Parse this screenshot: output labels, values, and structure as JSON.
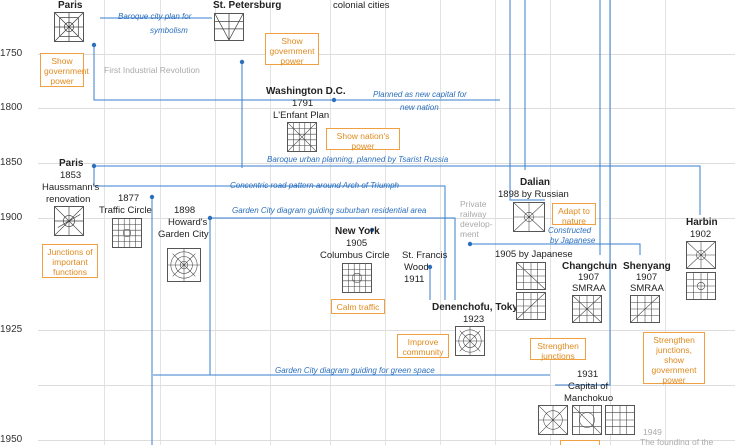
{
  "years": [
    "1750",
    "1800",
    "1850",
    "1900",
    "1925",
    "1950"
  ],
  "cities": {
    "paris1": "Paris",
    "stpetersburg": "St. Petersburg",
    "colonial": "colonial cities",
    "washington": "Washington D.C.",
    "washington_year": "1791",
    "washington_plan": "L'Enfant Plan",
    "paris2": "Paris",
    "paris2_year": "1853",
    "paris2_desc1": "Haussmann's",
    "paris2_desc2": "renovation",
    "tc_year": "1877",
    "tc_desc": "Traffic Circle",
    "hg_year": "1898",
    "hg_desc1": "Howard's",
    "hg_desc2": "Garden City",
    "ny": "New York",
    "ny_year": "1905",
    "ny_desc": "Columbus Circle",
    "sf1": "St. Francis",
    "sf2": "Wood",
    "sf3": "1911",
    "den": "Denenchofu, Tokyo",
    "den_year": "1923",
    "dalian": "Dalian",
    "dalian_desc": "1898 by Russian",
    "dalian_desc2": "1905 by Japanese",
    "changchun": "Changchun",
    "changchun_year": "1907",
    "changchun_desc": "SMRAA",
    "shenyang": "Shenyang",
    "shenyang_year": "1907",
    "shenyang_desc": "SMRAA",
    "harbin": "Harbin",
    "harbin_year": "1902",
    "man_year": "1931",
    "man_desc1": "Capital of",
    "man_desc2": "Manchokuo"
  },
  "notes": {
    "n1": "Baroque city plan for",
    "n1b": "symbolism",
    "n2": "Planned as new capital for",
    "n2b": "new nation",
    "n3": "Baroque urban planning, planned by Tsarist Russia",
    "n4": "Concentric road pattern around Arch of Triumph",
    "n5": "Garden City diagram guiding suburban residential area",
    "n6": "Constructed",
    "n6b": "by Japanese",
    "n7": "Garden City diagram guiding for green space"
  },
  "boxes": {
    "b1": "Show\ngovernment\npower",
    "b2": "Show\ngovernment\npower",
    "b3": "Show nation's\npower",
    "b4": "Junctions of\nimportant\nfunctions",
    "b5": "Adapt to\nnature",
    "b6": "Calm traffic",
    "b7": "Improve\ncommunity",
    "b8": "Strengthen\njunctions",
    "b9": "Strengthen\njunctions,\nshow\ngovernment\npower"
  },
  "grey": {
    "g1": "First Industrial Revolution",
    "g2": "Private\nrailway\ndevelop-\nment",
    "g3": "1949",
    "g4": "The founding of the"
  },
  "colors": {
    "line": "#3a7fd0",
    "box": "#f0a040",
    "note": "#2b6fbd"
  }
}
